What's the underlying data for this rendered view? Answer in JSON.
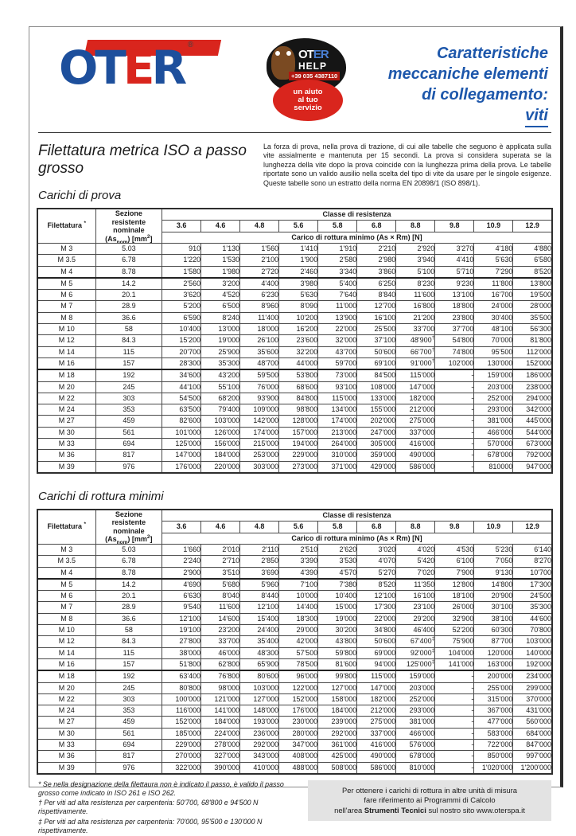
{
  "page": {
    "header": {
      "logo": {
        "word_part1": "OT",
        "word_part2": "E",
        "word_part3": "R",
        "registered_mark": "®",
        "brand_blue": "#1d4f9c",
        "brand_red": "#d9251d"
      },
      "badge": {
        "brand_part1": "OT",
        "brand_part2": "ER",
        "help": "HELP",
        "phone": "+39 035 4387110",
        "tagline_line1": "un aiuto",
        "tagline_line2": "al tuo",
        "tagline_line3": "servizio"
      },
      "title_line1": "Caratteristiche",
      "title_line2": "meccaniche elementi",
      "title_line3": "di collegamento:",
      "title_line4": "viti",
      "title_color": "#1d57ab"
    },
    "section_main_title": "Filettatura metrica ISO a passo grosso",
    "intro_text": "La forza di prova, nella prova di trazione, di cui alle tabelle che seguono è applicata sulla vite assialmente e mantenuta per 15 secondi. La prova si considera superata se la lunghezza della vite dopo la prova coincide con la lunghezza prima della prova. Le tabelle riportate sono un valido ausilio nella scelta del tipo di vite da usare per le singole esigenze. Queste tabelle sono un estratto della norma EN 20898/1 (ISO 898/1).",
    "tables": [
      {
        "section_title": "Carichi di prova",
        "col1_header": "Filettatura",
        "col1_header_mark": "*",
        "col2_line1": "Sezione",
        "col2_line2": "resistente",
        "col2_line3": "nominale",
        "col2_unit_pre": "(As",
        "col2_unit_sub": "nom",
        "col2_unit_mid": ") [mm",
        "col2_unit_sup": "2",
        "col2_unit_post": "]",
        "classe_header": "Classe di resistenza",
        "classes": [
          "3.6",
          "4.6",
          "4.8",
          "5.6",
          "5.8",
          "6.8",
          "8.8",
          "9.8",
          "10.9",
          "12.9"
        ],
        "subheader": "Carico di rottura minimo (As × Rm) [N]",
        "rows": [
          [
            "M 3",
            "5.03",
            "910",
            "1'130",
            "1'560",
            "1'410",
            "1'910",
            "2'210",
            "2'920",
            "3'270",
            "4'180",
            "4'880"
          ],
          [
            "M 3.5",
            "6.78",
            "1'220",
            "1'530",
            "2'100",
            "1'900",
            "2'580",
            "2'980",
            "3'940",
            "4'410",
            "5'630",
            "6'580"
          ],
          [
            "M 4",
            "8.78",
            "1'580",
            "1'980",
            "2'720",
            "2'460",
            "3'340",
            "3'860",
            "5'100",
            "5'710",
            "7'290",
            "8'520"
          ],
          [
            "M 5",
            "14.2",
            "2'560",
            "3'200",
            "4'400",
            "3'980",
            "5'400",
            "6'250",
            "8'230",
            "9'230",
            "11'800",
            "13'800"
          ],
          [
            "M 6",
            "20.1",
            "3'620",
            "4'520",
            "6'230",
            "5'630",
            "7'640",
            "8'840",
            "11'600",
            "13'100",
            "16'700",
            "19'500"
          ],
          [
            "M 7",
            "28.9",
            "5'200",
            "6'500",
            "8'960",
            "8'090",
            "11'000",
            "12'700",
            "16'800",
            "18'800",
            "24'000",
            "28'000"
          ],
          [
            "M 8",
            "36.6",
            "6'590",
            "8'240",
            "11'400",
            "10'200",
            "13'900",
            "16'100",
            "21'200",
            "23'800",
            "30'400",
            "35'500"
          ],
          [
            "M 10",
            "58",
            "10'400",
            "13'000",
            "18'000",
            "16'200",
            "22'000",
            "25'500",
            "33'700",
            "37'700",
            "48'100",
            "56'300"
          ],
          [
            "M 12",
            "84.3",
            "15'200",
            "19'000",
            "26'100",
            "23'600",
            "32'000",
            "37'100",
            "48'900†",
            "54'800",
            "70'000",
            "81'800"
          ],
          [
            "M 14",
            "115",
            "20'700",
            "25'900",
            "35'600",
            "32'200",
            "43'700",
            "50'600",
            "66'700†",
            "74'800",
            "95'500",
            "112'000"
          ],
          [
            "M 16",
            "157",
            "28'300",
            "35'300",
            "48'700",
            "44'000",
            "59'700",
            "69'100",
            "91'000†",
            "102'000",
            "130'000",
            "152'000"
          ],
          [
            "M 18",
            "192",
            "34'600",
            "43'200",
            "59'500",
            "53'800",
            "73'000",
            "84'500",
            "115'000",
            "-",
            "159'000",
            "186'000"
          ],
          [
            "M 20",
            "245",
            "44'100",
            "55'100",
            "76'000",
            "68'600",
            "93'100",
            "108'000",
            "147'000",
            "-",
            "203'000",
            "238'000"
          ],
          [
            "M 22",
            "303",
            "54'500",
            "68'200",
            "93'900",
            "84'800",
            "115'000",
            "133'000",
            "182'000",
            "-",
            "252'000",
            "294'000"
          ],
          [
            "M 24",
            "353",
            "63'500",
            "79'400",
            "109'000",
            "98'800",
            "134'000",
            "155'000",
            "212'000",
            "-",
            "293'000",
            "342'000"
          ],
          [
            "M 27",
            "459",
            "82'600",
            "103'000",
            "142'000",
            "128'000",
            "174'000",
            "202'000",
            "275'000",
            "-",
            "381'000",
            "445'000"
          ],
          [
            "M 30",
            "561",
            "101'000",
            "126'000",
            "174'000",
            "157'000",
            "213'000",
            "247'000",
            "337'000",
            "-",
            "466'000",
            "544'000"
          ],
          [
            "M 33",
            "694",
            "125'000",
            "156'000",
            "215'000",
            "194'000",
            "264'000",
            "305'000",
            "416'000",
            "-",
            "570'000",
            "673'000"
          ],
          [
            "M 36",
            "817",
            "147'000",
            "184'000",
            "253'000",
            "229'000",
            "310'000",
            "359'000",
            "490'000",
            "-",
            "678'000",
            "792'000"
          ],
          [
            "M 39",
            "976",
            "176'000",
            "220'000",
            "303'000",
            "273'000",
            "371'000",
            "429'000",
            "586'000",
            "-",
            "810000",
            "947'000"
          ]
        ]
      },
      {
        "section_title": "Carichi di rottura minimi",
        "col1_header": "Filettatura",
        "col1_header_mark": "*",
        "col2_line1": "Sezione",
        "col2_line2": "resistente",
        "col2_line3": "nominale",
        "col2_unit_pre": "(As",
        "col2_unit_sub": "nom",
        "col2_unit_mid": ") [mm",
        "col2_unit_sup": "2",
        "col2_unit_post": "]",
        "classe_header": "Classe di resistenza",
        "classes": [
          "3.6",
          "4.6",
          "4.8",
          "5.6",
          "5.8",
          "6.8",
          "8.8",
          "9.8",
          "10.9",
          "12.9"
        ],
        "subheader": "Carico di rottura minimo (As × Rm) [N]",
        "rows": [
          [
            "M 3",
            "5.03",
            "1'660",
            "2'010",
            "2'110",
            "2'510",
            "2'620",
            "3'020",
            "4'020",
            "4'530",
            "5'230",
            "6'140"
          ],
          [
            "M 3.5",
            "6.78",
            "2'240",
            "2'710",
            "2'850",
            "3'390",
            "3'530",
            "4'070",
            "5'420",
            "6'100",
            "7'050",
            "8'270"
          ],
          [
            "M 4",
            "8.78",
            "2'900",
            "3'510",
            "3'690",
            "4'390",
            "4'570",
            "5'270",
            "7'020",
            "7'900",
            "9'130",
            "10'700"
          ],
          [
            "M 5",
            "14.2",
            "4'690",
            "5'680",
            "5'960",
            "7'100",
            "7'380",
            "8'520",
            "11'350",
            "12'800",
            "14'800",
            "17'300"
          ],
          [
            "M 6",
            "20.1",
            "6'630",
            "8'040",
            "8'440",
            "10'000",
            "10'400",
            "12'100",
            "16'100",
            "18'100",
            "20'900",
            "24'500"
          ],
          [
            "M 7",
            "28.9",
            "9'540",
            "11'600",
            "12'100",
            "14'400",
            "15'000",
            "17'300",
            "23'100",
            "26'000",
            "30'100",
            "35'300"
          ],
          [
            "M 8",
            "36.6",
            "12'100",
            "14'600",
            "15'400",
            "18'300",
            "19'000",
            "22'000",
            "29'200",
            "32'900",
            "38'100",
            "44'600"
          ],
          [
            "M 10",
            "58",
            "19'100",
            "23'200",
            "24'400",
            "29'000",
            "30'200",
            "34'800",
            "46'400",
            "52'200",
            "60'300",
            "70'800"
          ],
          [
            "M 12",
            "84.3",
            "27'800",
            "33'700",
            "35'400",
            "42'000",
            "43'800",
            "50'600",
            "67'400‡",
            "75'900",
            "87'700",
            "103'000"
          ],
          [
            "M 14",
            "115",
            "38'000",
            "46'000",
            "48'300",
            "57'500",
            "59'800",
            "69'000",
            "92'000‡",
            "104'000",
            "120'000",
            "140'000"
          ],
          [
            "M 16",
            "157",
            "51'800",
            "62'800",
            "65'900",
            "78'500",
            "81'600",
            "94'000",
            "125'000‡",
            "141'000",
            "163'000",
            "192'000"
          ],
          [
            "M 18",
            "192",
            "63'400",
            "76'800",
            "80'600",
            "96'000",
            "99'800",
            "115'000",
            "159'000",
            "-",
            "200'000",
            "234'000"
          ],
          [
            "M 20",
            "245",
            "80'800",
            "98'000",
            "103'000",
            "122'000",
            "127'000",
            "147'000",
            "203'000",
            "-",
            "255'000",
            "299'000"
          ],
          [
            "M 22",
            "303",
            "100'000",
            "121'000",
            "127'000",
            "152'000",
            "158'000",
            "182'000",
            "252'000",
            "-",
            "315'000",
            "370'000"
          ],
          [
            "M 24",
            "353",
            "116'000",
            "141'000",
            "148'000",
            "176'000",
            "184'000",
            "212'000",
            "293'000",
            "-",
            "367'000",
            "431'000"
          ],
          [
            "M 27",
            "459",
            "152'000",
            "184'000",
            "193'000",
            "230'000",
            "239'000",
            "275'000",
            "381'000",
            "-",
            "477'000",
            "560'000"
          ],
          [
            "M 30",
            "561",
            "185'000",
            "224'000",
            "236'000",
            "280'000",
            "292'000",
            "337'000",
            "466'000",
            "-",
            "583'000",
            "684'000"
          ],
          [
            "M 33",
            "694",
            "229'000",
            "278'000",
            "292'000",
            "347'000",
            "361'000",
            "416'000",
            "576'000",
            "-",
            "722'000",
            "847'000"
          ],
          [
            "M 36",
            "817",
            "270'000",
            "327'000",
            "343'000",
            "408'000",
            "425'000",
            "490'000",
            "678'000",
            "-",
            "850'000",
            "997'000"
          ],
          [
            "M 39",
            "976",
            "322'000",
            "390'000",
            "410'000",
            "488'000",
            "508'000",
            "586'000",
            "810'000",
            "-",
            "1'020'000",
            "1'200'000"
          ]
        ]
      }
    ],
    "footnotes": [
      "* Se nella designazione della filettaura non è indicato il passo, è valido il passo grosso come indicato in ISO 261 e ISO 262.",
      "† Per viti ad alta resistenza per carpenteria: 50'700, 68'800 e 94'500 N rispettivamente.",
      "‡ Per viti ad alta resistenza per carpenteria: 70'000, 95'500 e 130'000 N rispettivamente."
    ],
    "infobox": {
      "line1": "Per ottenere i carichi di rottura in altre unità di misura",
      "line2": "fare riferimento ai Programmi di Calcolo",
      "line3_pre": "nell'area ",
      "line3_bold": "Strumenti Tecnici",
      "line3_post": " sul nostro sito www.oterspa.it"
    }
  }
}
